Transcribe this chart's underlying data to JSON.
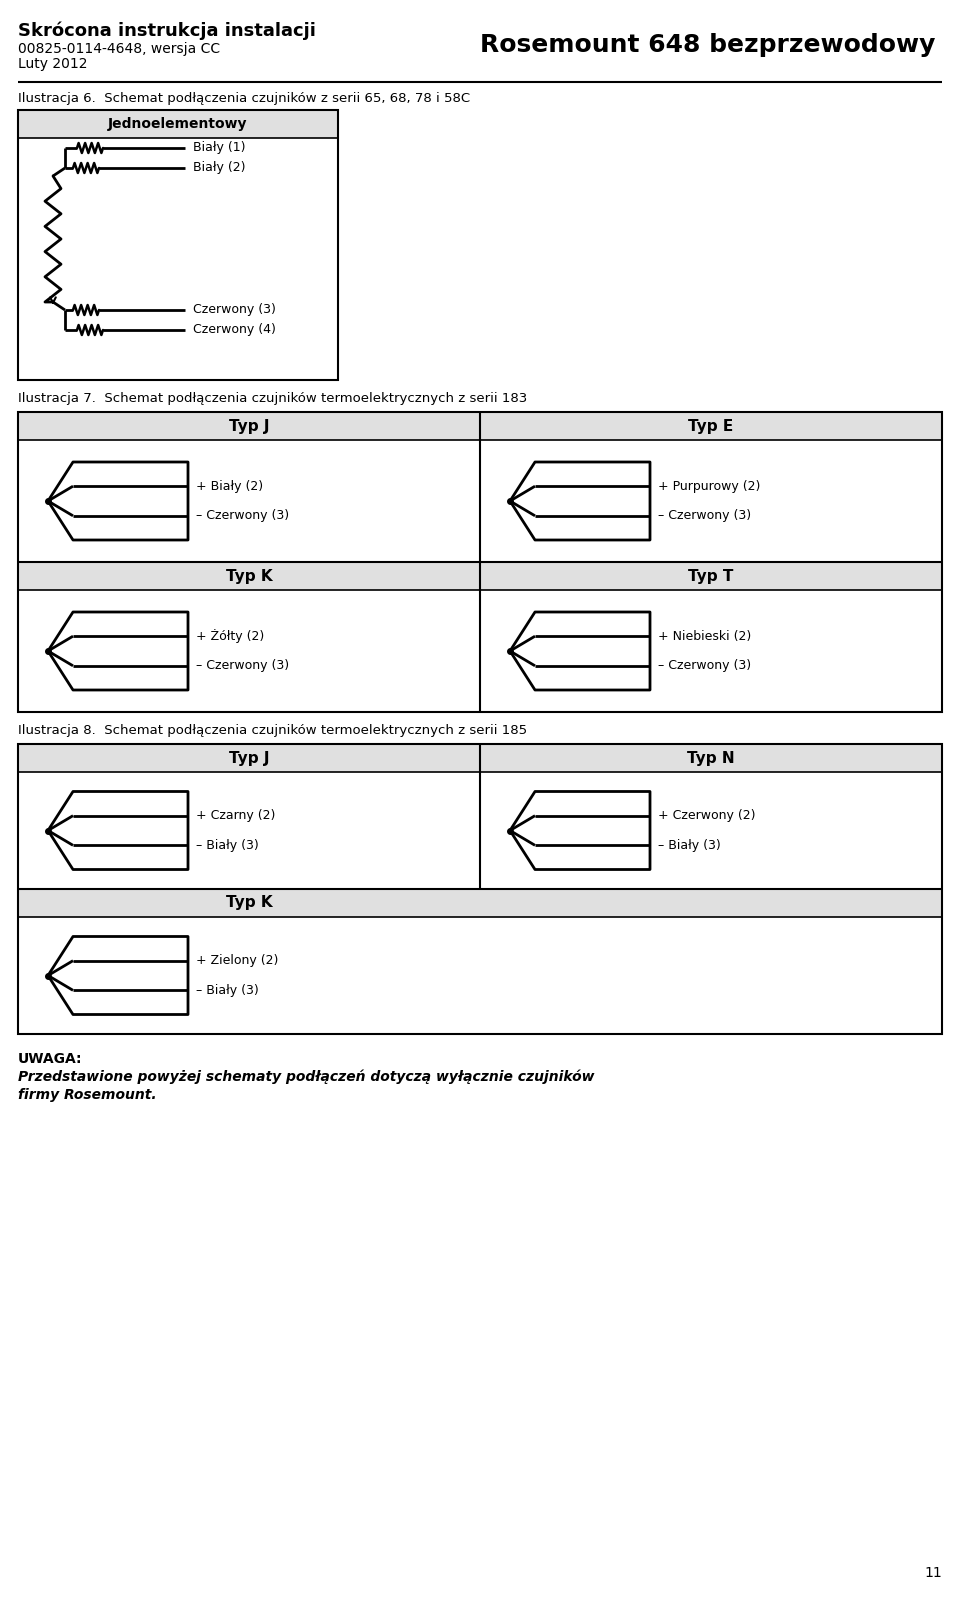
{
  "header_title_bold": "Skrócona instrukcja instalacji",
  "header_line2": "00825-0114-4648, wersja CC",
  "header_line3": "Luty 2012",
  "header_right": "Rosemount 648 bezprzewodowy",
  "fig6_label": "Ilustracja 6.  Schemat podłączenia czujników z serii 65, 68, 78 i 58C",
  "fig6_box_title": "Jednoelementowy",
  "fig6_wires": [
    "Biały (1)",
    "Biały (2)",
    "Czerwony (3)",
    "Czerwony (4)"
  ],
  "fig7_label": "Ilustracja 7.  Schemat podłączenia czujników termoelektrycznych z serii 183",
  "fig7_types": [
    {
      "name": "Typ J",
      "plus": "+ Biały (2)",
      "minus": "– Czerwony (3)"
    },
    {
      "name": "Typ E",
      "plus": "+ Purpurowy (2)",
      "minus": "– Czerwony (3)"
    },
    {
      "name": "Typ K",
      "plus": "+ Żółty (2)",
      "minus": "– Czerwony (3)"
    },
    {
      "name": "Typ T",
      "plus": "+ Niebieski (2)",
      "minus": "– Czerwony (3)"
    }
  ],
  "fig8_label": "Ilustracja 8.  Schemat podłączenia czujników termoelektrycznych z serii 185",
  "fig8_types": [
    {
      "name": "Typ J",
      "plus": "+ Czarny (2)",
      "minus": "– Biały (3)"
    },
    {
      "name": "Typ N",
      "plus": "+ Czerwony (2)",
      "minus": "– Biały (3)"
    },
    {
      "name": "Typ K",
      "plus": "+ Zielony (2)",
      "minus": "– Biały (3)"
    }
  ],
  "uwaga_title": "UWAGA:",
  "uwaga_line1": "Przedstawione powyżej schematy podłączeń dotyczą wyłącznie czujników",
  "uwaga_line2": "firmy Rosemount.",
  "page_number": "11",
  "bg_color": "#ffffff",
  "cell_header_bg": "#e0e0e0",
  "border_color": "#000000"
}
